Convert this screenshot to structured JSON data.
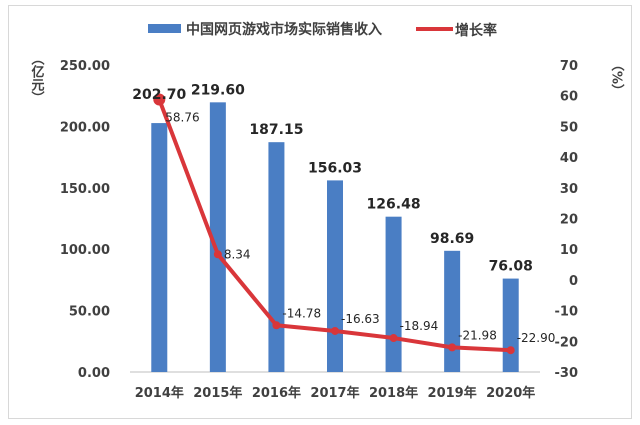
{
  "chart_data": {
    "type": "bar+line",
    "categories": [
      "2014年",
      "2015年",
      "2016年",
      "2017年",
      "2018年",
      "2019年",
      "2020年"
    ],
    "series": [
      {
        "name": "中国网页游戏市场实际销售收入",
        "type": "bar",
        "axis": "left",
        "color": "#4a7ec4",
        "values": [
          202.7,
          219.6,
          187.15,
          156.03,
          126.48,
          98.69,
          76.08
        ],
        "labels": [
          "202.70",
          "219.60",
          "187.15",
          "156.03",
          "126.48",
          "98.69",
          "76.08"
        ]
      },
      {
        "name": "增长率",
        "type": "line",
        "axis": "right",
        "color": "#d9363a",
        "values": [
          58.76,
          8.34,
          -14.78,
          -16.63,
          -18.94,
          -21.98,
          -22.9
        ],
        "labels": [
          "58.76",
          "8.34",
          "-14.78",
          "-16.63",
          "-18.94",
          "-21.98",
          "-22.90"
        ]
      }
    ],
    "ylabel_left": "（亿元）",
    "ylabel_right": "（%）",
    "ylim_left": [
      0,
      250
    ],
    "ylim_right": [
      -30,
      70
    ],
    "yticks_left": [
      "0.00",
      "50.00",
      "100.00",
      "150.00",
      "200.00",
      "250.00"
    ],
    "yticks_right": [
      "-30",
      "-20",
      "-10",
      "0",
      "10",
      "20",
      "30",
      "40",
      "50",
      "60",
      "70"
    ],
    "grid": false,
    "legend": "top"
  }
}
